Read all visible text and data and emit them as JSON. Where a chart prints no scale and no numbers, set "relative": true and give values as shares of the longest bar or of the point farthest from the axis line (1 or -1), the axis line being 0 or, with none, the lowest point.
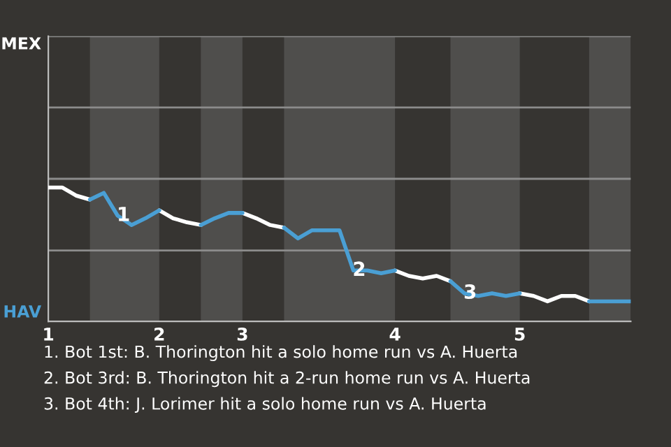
{
  "chart_data": {
    "type": "line",
    "relative": true,
    "categories": [
      "1",
      null,
      null,
      null,
      null,
      null,
      null,
      null,
      "2",
      null,
      null,
      null,
      null,
      null,
      "3",
      null,
      null,
      null,
      null,
      null,
      null,
      null,
      null,
      null,
      null,
      "4",
      null,
      null,
      null,
      null,
      null,
      null,
      null,
      null,
      "5",
      null,
      null,
      null,
      null,
      null,
      null,
      null,
      null
    ],
    "series": [
      {
        "color": "#ffffff",
        "values": [
          1,
          1,
          0.94,
          0.91,
          null,
          null,
          null,
          null,
          0.83,
          0.77,
          0.74,
          0.72,
          null,
          null,
          0.81,
          0.77,
          0.72,
          0.7,
          null,
          null,
          null,
          null,
          null,
          null,
          null,
          0.38,
          0.34,
          0.32,
          0.34,
          0.3,
          null,
          null,
          null,
          null,
          0.21,
          0.19,
          0.15,
          0.19,
          0.19,
          0.15,
          null,
          null,
          null
        ]
      },
      {
        "color": "#4a9fd4",
        "values": [
          null,
          null,
          null,
          0.91,
          0.96,
          0.79,
          0.72,
          0.77,
          0.83,
          null,
          null,
          0.72,
          0.77,
          0.81,
          0.81,
          null,
          null,
          0.7,
          0.62,
          0.68,
          0.68,
          0.68,
          0.38,
          0.38,
          0.36,
          0.38,
          null,
          null,
          null,
          0.3,
          0.21,
          0.19,
          0.21,
          0.19,
          0.21,
          null,
          null,
          null,
          null,
          0.15,
          0.15,
          0.15,
          0.15
        ]
      }
    ],
    "ref_lines": [
      {
        "axis": "y",
        "value": 0.53,
        "color": "#8c8c8c"
      }
    ],
    "annotations": [
      "MEX",
      "HAV",
      "1",
      "2",
      "3",
      "1. Bot 1st: B. Thorington hit a solo home run vs A. Huerta",
      "2. Bot 3rd: B. Thorington hit a 2-run home run vs A. Huerta",
      "3. Bot 4th: J. Lorimer hit a solo home run vs A. Huerta"
    ]
  }
}
